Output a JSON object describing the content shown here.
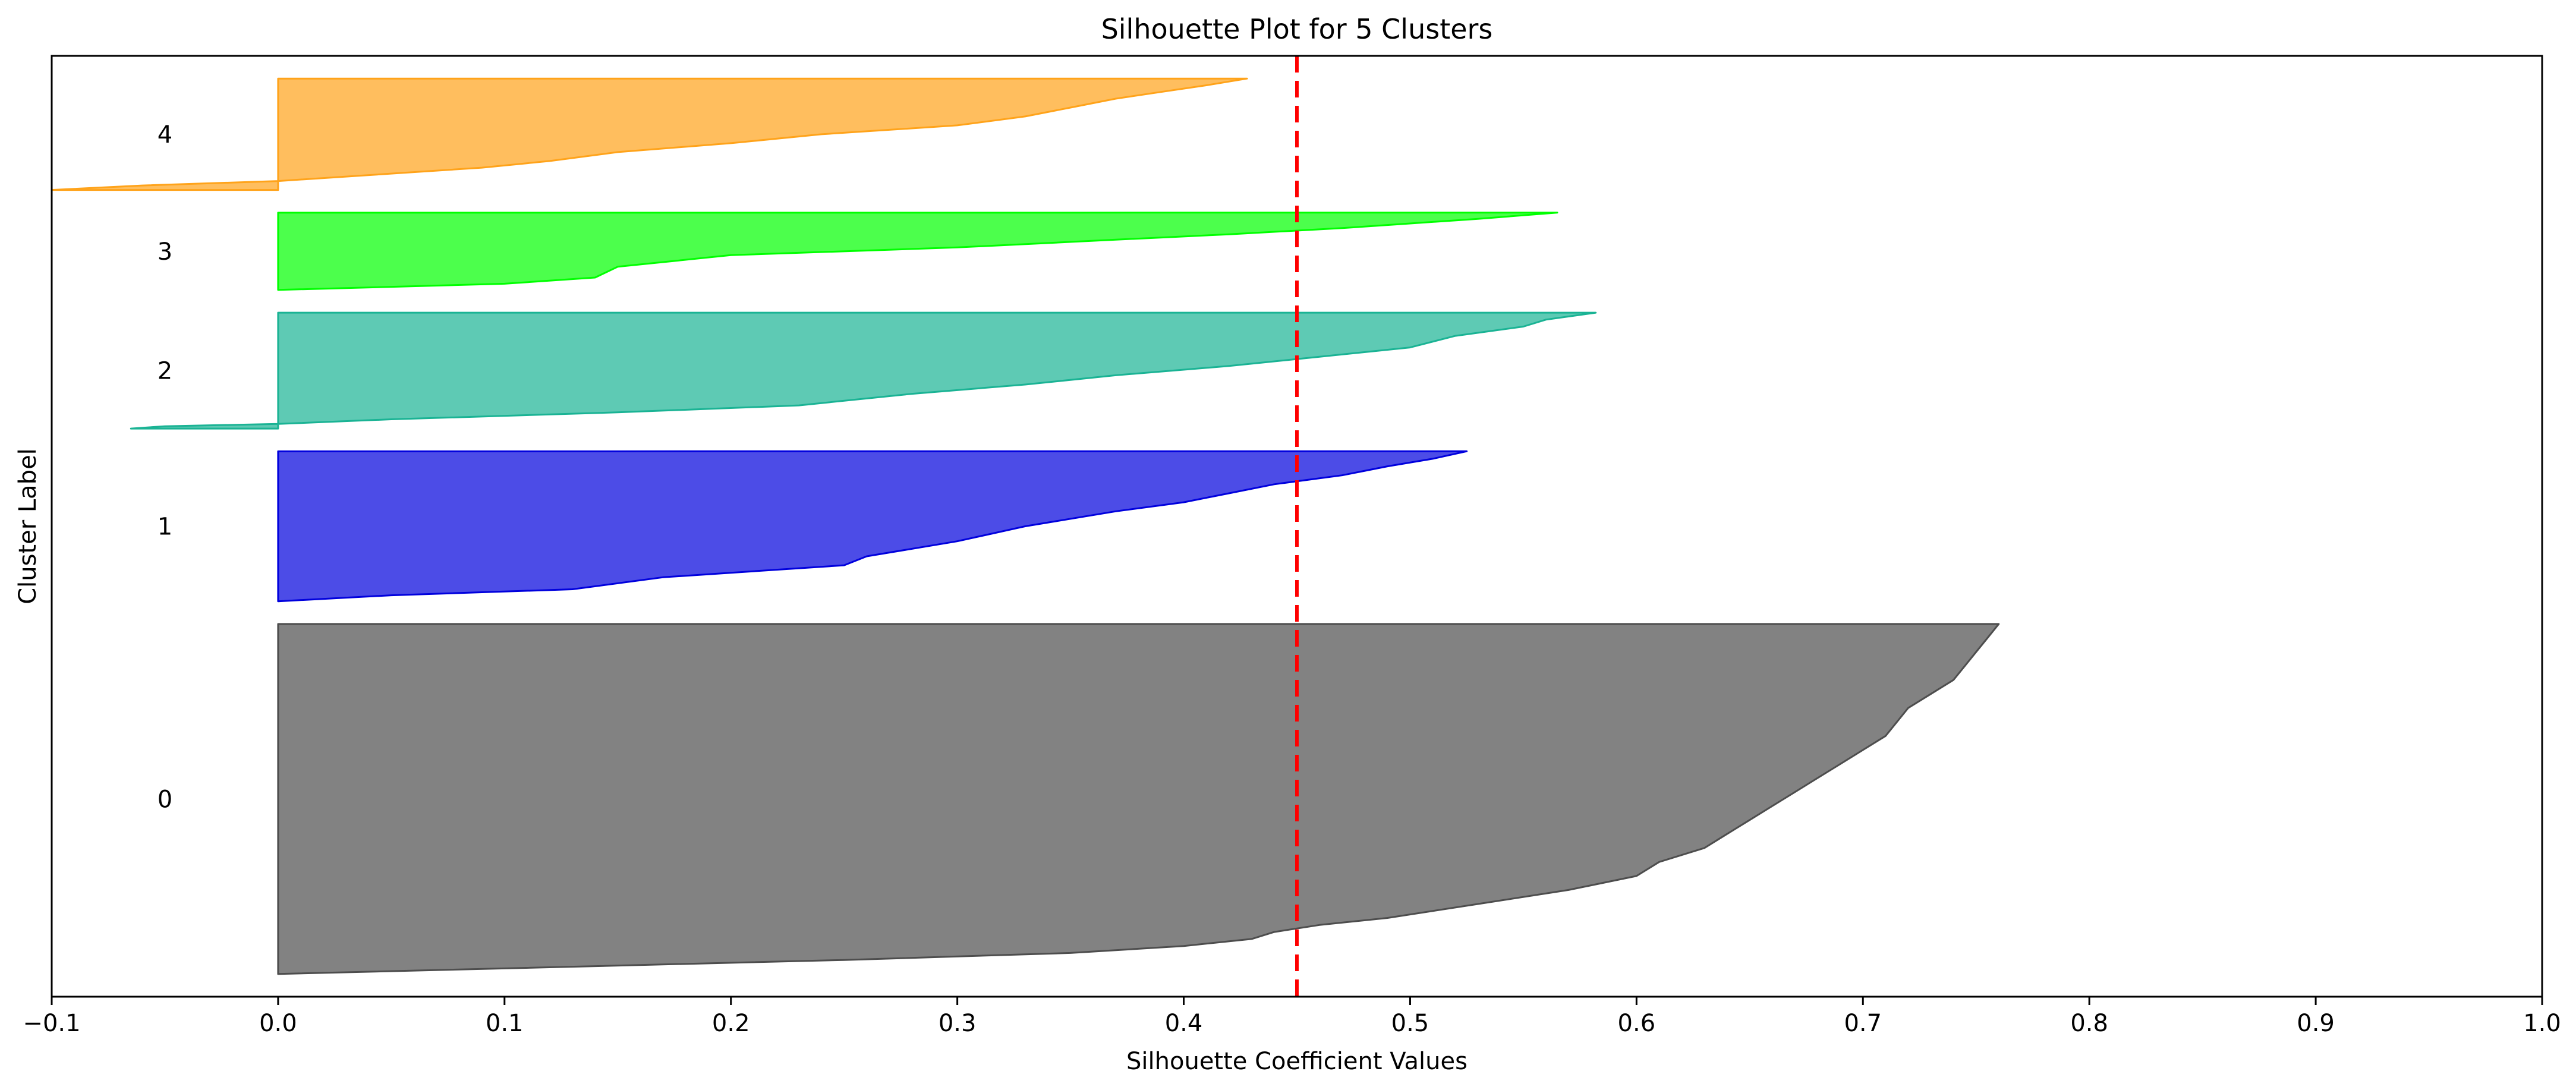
{
  "chart_data": {
    "type": "area",
    "title": "Silhouette Plot for 5 Clusters",
    "xlabel": "Silhouette Coefficient Values",
    "ylabel": "Cluster Label",
    "xlim": [
      -0.1,
      1.0
    ],
    "xticks": [
      "−0.1",
      "0.0",
      "0.1",
      "0.2",
      "0.3",
      "0.4",
      "0.5",
      "0.6",
      "0.7",
      "0.8",
      "0.9",
      "1.0"
    ],
    "xtick_values": [
      -0.1,
      0.0,
      0.1,
      0.2,
      0.3,
      0.4,
      0.5,
      0.6,
      0.7,
      0.8,
      0.9,
      1.0
    ],
    "ylim": [
      0,
      414
    ],
    "grid": false,
    "average_silhouette": 0.45,
    "average_line_color": "#ff0000",
    "series": [
      {
        "name": "0",
        "color": "#4d4d4d",
        "y_lower": 10,
        "y_upper": 164,
        "profile": [
          [
            0,
            0.0
          ],
          [
            0.04,
            0.25
          ],
          [
            0.06,
            0.35
          ],
          [
            0.08,
            0.4
          ],
          [
            0.1,
            0.43
          ],
          [
            0.12,
            0.44
          ],
          [
            0.14,
            0.46
          ],
          [
            0.16,
            0.49
          ],
          [
            0.2,
            0.53
          ],
          [
            0.24,
            0.57
          ],
          [
            0.28,
            0.6
          ],
          [
            0.32,
            0.61
          ],
          [
            0.36,
            0.63
          ],
          [
            0.4,
            0.64
          ],
          [
            0.44,
            0.65
          ],
          [
            0.48,
            0.66
          ],
          [
            0.52,
            0.67
          ],
          [
            0.56,
            0.68
          ],
          [
            0.6,
            0.69
          ],
          [
            0.64,
            0.7
          ],
          [
            0.68,
            0.71
          ],
          [
            0.72,
            0.715
          ],
          [
            0.76,
            0.72
          ],
          [
            0.8,
            0.73
          ],
          [
            0.84,
            0.74
          ],
          [
            0.88,
            0.745
          ],
          [
            0.92,
            0.75
          ],
          [
            0.96,
            0.755
          ],
          [
            1.0,
            0.76
          ]
        ]
      },
      {
        "name": "1",
        "color": "#0000dd",
        "y_lower": 174,
        "y_upper": 240,
        "profile": [
          [
            0,
            0.0
          ],
          [
            0.04,
            0.05
          ],
          [
            0.08,
            0.13
          ],
          [
            0.16,
            0.17
          ],
          [
            0.24,
            0.25
          ],
          [
            0.3,
            0.26
          ],
          [
            0.4,
            0.3
          ],
          [
            0.5,
            0.33
          ],
          [
            0.6,
            0.37
          ],
          [
            0.66,
            0.4
          ],
          [
            0.72,
            0.42
          ],
          [
            0.78,
            0.44
          ],
          [
            0.84,
            0.47
          ],
          [
            0.9,
            0.49
          ],
          [
            0.95,
            0.51
          ],
          [
            1.0,
            0.525
          ]
        ]
      },
      {
        "name": "2",
        "color": "#1ab394",
        "y_lower": 250,
        "y_upper": 301,
        "profile": [
          [
            0,
            -0.065
          ],
          [
            0.02,
            -0.05
          ],
          [
            0.04,
            0.0
          ],
          [
            0.08,
            0.05
          ],
          [
            0.14,
            0.15
          ],
          [
            0.2,
            0.23
          ],
          [
            0.3,
            0.28
          ],
          [
            0.38,
            0.33
          ],
          [
            0.46,
            0.37
          ],
          [
            0.54,
            0.42
          ],
          [
            0.62,
            0.46
          ],
          [
            0.7,
            0.5
          ],
          [
            0.8,
            0.52
          ],
          [
            0.88,
            0.55
          ],
          [
            0.94,
            0.56
          ],
          [
            1.0,
            0.582
          ]
        ]
      },
      {
        "name": "3",
        "color": "#00ff00",
        "y_lower": 311,
        "y_upper": 345,
        "profile": [
          [
            0,
            0.0
          ],
          [
            0.08,
            0.1
          ],
          [
            0.16,
            0.14
          ],
          [
            0.3,
            0.15
          ],
          [
            0.45,
            0.2
          ],
          [
            0.55,
            0.3
          ],
          [
            0.65,
            0.37
          ],
          [
            0.72,
            0.42
          ],
          [
            0.8,
            0.47
          ],
          [
            0.86,
            0.5
          ],
          [
            0.92,
            0.53
          ],
          [
            1.0,
            0.565
          ]
        ]
      },
      {
        "name": "4",
        "color": "#ffa31a",
        "y_lower": 355,
        "y_upper": 404,
        "profile": [
          [
            0,
            -0.1
          ],
          [
            0.04,
            -0.06
          ],
          [
            0.08,
            0.0
          ],
          [
            0.12,
            0.03
          ],
          [
            0.2,
            0.09
          ],
          [
            0.26,
            0.12
          ],
          [
            0.34,
            0.15
          ],
          [
            0.42,
            0.2
          ],
          [
            0.5,
            0.24
          ],
          [
            0.58,
            0.3
          ],
          [
            0.66,
            0.33
          ],
          [
            0.74,
            0.35
          ],
          [
            0.82,
            0.37
          ],
          [
            0.88,
            0.39
          ],
          [
            0.94,
            0.41
          ],
          [
            1.0,
            0.428
          ]
        ]
      }
    ]
  }
}
